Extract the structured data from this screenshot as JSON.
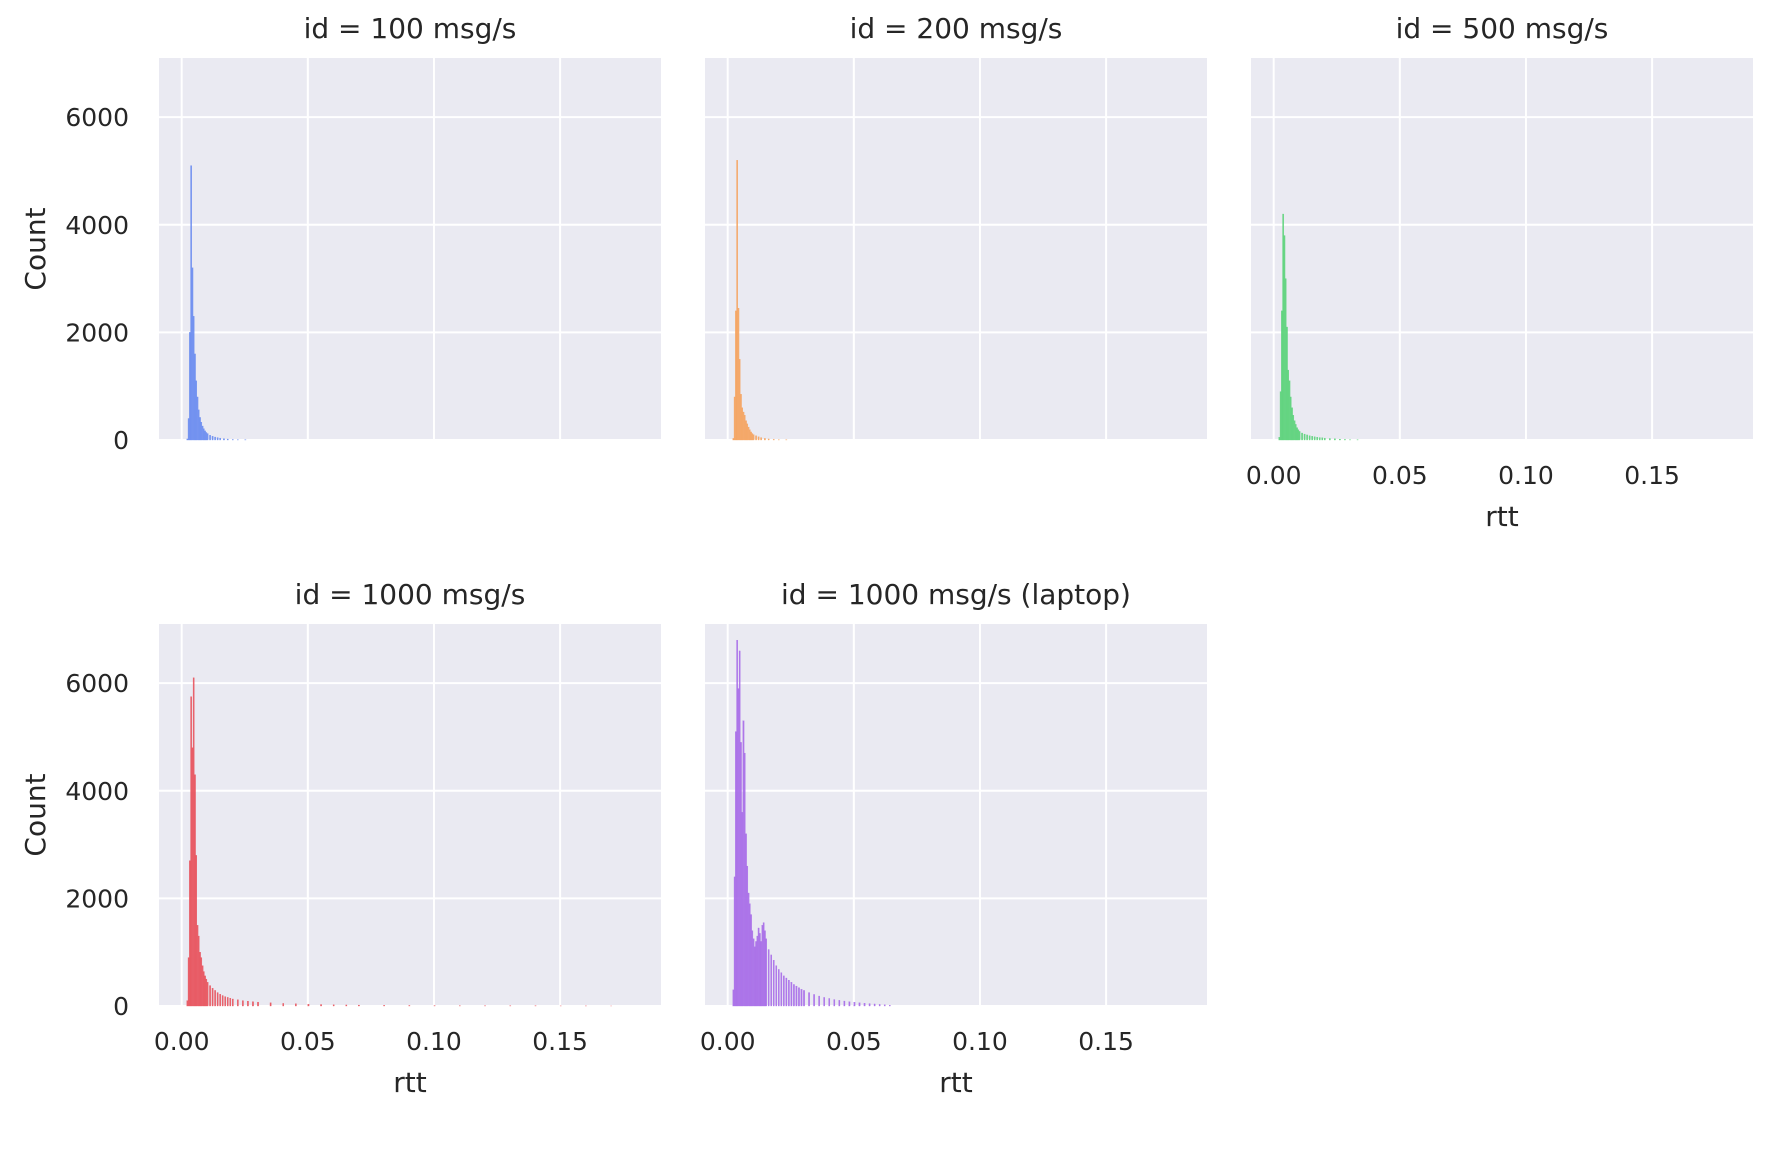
{
  "chart_data": {
    "type": "bar",
    "layout": "facet-grid",
    "style": "seaborn-darkgrid",
    "xlabel": "rtt",
    "ylabel": "Count",
    "xlim": [
      -0.009,
      0.19
    ],
    "ylim": [
      0,
      7100
    ],
    "xticks": [
      0.0,
      0.05,
      0.1,
      0.15
    ],
    "xtick_labels": [
      "0.00",
      "0.05",
      "0.10",
      "0.15"
    ],
    "yticks": [
      0,
      2000,
      4000,
      6000
    ],
    "ytick_labels": [
      "0",
      "2000",
      "4000",
      "6000"
    ],
    "grid": true,
    "bin_width": 0.0005,
    "panels": [
      {
        "title": "id = 100 msg/s",
        "color": "#6a8cf0",
        "show_xtick_labels": false,
        "show_xlabel": false,
        "show_ytick_labels": true,
        "show_ylabel": true,
        "bins": [
          [
            0.002,
            20
          ],
          [
            0.0025,
            400
          ],
          [
            0.003,
            2000
          ],
          [
            0.0035,
            5100
          ],
          [
            0.004,
            3200
          ],
          [
            0.0045,
            2300
          ],
          [
            0.005,
            1600
          ],
          [
            0.0055,
            1100
          ],
          [
            0.006,
            800
          ],
          [
            0.0065,
            560
          ],
          [
            0.007,
            420
          ],
          [
            0.0075,
            330
          ],
          [
            0.008,
            260
          ],
          [
            0.0085,
            210
          ],
          [
            0.009,
            170
          ],
          [
            0.0095,
            140
          ],
          [
            0.01,
            120
          ],
          [
            0.011,
            90
          ],
          [
            0.012,
            70
          ],
          [
            0.013,
            55
          ],
          [
            0.014,
            45
          ],
          [
            0.015,
            35
          ],
          [
            0.0165,
            25
          ],
          [
            0.018,
            18
          ],
          [
            0.02,
            10
          ],
          [
            0.022,
            6
          ],
          [
            0.025,
            3
          ]
        ]
      },
      {
        "title": "id = 200 msg/s",
        "color": "#f5a35f",
        "show_xtick_labels": false,
        "show_xlabel": false,
        "show_ytick_labels": false,
        "show_ylabel": false,
        "bins": [
          [
            0.002,
            30
          ],
          [
            0.0025,
            800
          ],
          [
            0.003,
            2400
          ],
          [
            0.0035,
            5200
          ],
          [
            0.004,
            2450
          ],
          [
            0.0045,
            1500
          ],
          [
            0.005,
            850
          ],
          [
            0.0055,
            600
          ],
          [
            0.006,
            520
          ],
          [
            0.0065,
            460
          ],
          [
            0.007,
            360
          ],
          [
            0.0075,
            300
          ],
          [
            0.008,
            240
          ],
          [
            0.0085,
            190
          ],
          [
            0.009,
            150
          ],
          [
            0.0095,
            120
          ],
          [
            0.01,
            100
          ],
          [
            0.011,
            80
          ],
          [
            0.012,
            60
          ],
          [
            0.013,
            45
          ],
          [
            0.0145,
            30
          ],
          [
            0.016,
            20
          ],
          [
            0.018,
            12
          ],
          [
            0.02,
            6
          ],
          [
            0.023,
            3
          ]
        ]
      },
      {
        "title": "id = 500 msg/s",
        "color": "#5bd37a",
        "show_xtick_labels": true,
        "show_xlabel": true,
        "show_ytick_labels": false,
        "show_ylabel": false,
        "bins": [
          [
            0.002,
            50
          ],
          [
            0.0025,
            900
          ],
          [
            0.003,
            2400
          ],
          [
            0.0035,
            4200
          ],
          [
            0.004,
            3800
          ],
          [
            0.0045,
            3000
          ],
          [
            0.005,
            2100
          ],
          [
            0.0055,
            1300
          ],
          [
            0.006,
            1100
          ],
          [
            0.0065,
            800
          ],
          [
            0.007,
            600
          ],
          [
            0.0075,
            460
          ],
          [
            0.008,
            360
          ],
          [
            0.0085,
            290
          ],
          [
            0.009,
            230
          ],
          [
            0.0095,
            190
          ],
          [
            0.01,
            160
          ],
          [
            0.011,
            130
          ],
          [
            0.012,
            110
          ],
          [
            0.013,
            95
          ],
          [
            0.014,
            80
          ],
          [
            0.015,
            70
          ],
          [
            0.016,
            60
          ],
          [
            0.017,
            52
          ],
          [
            0.018,
            45
          ],
          [
            0.019,
            40
          ],
          [
            0.02,
            35
          ],
          [
            0.022,
            28
          ],
          [
            0.024,
            22
          ],
          [
            0.026,
            16
          ],
          [
            0.028,
            10
          ],
          [
            0.03,
            6
          ],
          [
            0.033,
            3
          ]
        ]
      },
      {
        "title": "id = 1000 msg/s",
        "color": "#e8525c",
        "show_xtick_labels": true,
        "show_xlabel": true,
        "show_ytick_labels": true,
        "show_ylabel": true,
        "bins": [
          [
            0.002,
            100
          ],
          [
            0.0025,
            900
          ],
          [
            0.003,
            2700
          ],
          [
            0.0035,
            5750
          ],
          [
            0.004,
            4800
          ],
          [
            0.0045,
            6100
          ],
          [
            0.005,
            4300
          ],
          [
            0.0055,
            2800
          ],
          [
            0.006,
            1500
          ],
          [
            0.0065,
            1300
          ],
          [
            0.007,
            1000
          ],
          [
            0.0075,
            900
          ],
          [
            0.008,
            750
          ],
          [
            0.0085,
            640
          ],
          [
            0.009,
            560
          ],
          [
            0.0095,
            500
          ],
          [
            0.01,
            440
          ],
          [
            0.011,
            380
          ],
          [
            0.012,
            330
          ],
          [
            0.013,
            290
          ],
          [
            0.014,
            250
          ],
          [
            0.015,
            220
          ],
          [
            0.016,
            195
          ],
          [
            0.017,
            175
          ],
          [
            0.018,
            160
          ],
          [
            0.019,
            145
          ],
          [
            0.02,
            130
          ],
          [
            0.022,
            115
          ],
          [
            0.024,
            100
          ],
          [
            0.026,
            90
          ],
          [
            0.028,
            80
          ],
          [
            0.03,
            72
          ],
          [
            0.035,
            60
          ],
          [
            0.04,
            48
          ],
          [
            0.045,
            40
          ],
          [
            0.05,
            33
          ],
          [
            0.055,
            28
          ],
          [
            0.06,
            24
          ],
          [
            0.065,
            20
          ],
          [
            0.07,
            17
          ],
          [
            0.08,
            13
          ],
          [
            0.09,
            10
          ],
          [
            0.1,
            8
          ],
          [
            0.11,
            6
          ],
          [
            0.12,
            5
          ],
          [
            0.13,
            4
          ],
          [
            0.14,
            3
          ],
          [
            0.15,
            2
          ],
          [
            0.16,
            2
          ],
          [
            0.17,
            1
          ]
        ]
      },
      {
        "title": "id = 1000 msg/s (laptop)",
        "color": "#a76ce8",
        "show_xtick_labels": true,
        "show_xlabel": true,
        "show_ytick_labels": false,
        "show_ylabel": false,
        "bins": [
          [
            0.002,
            300
          ],
          [
            0.0025,
            2400
          ],
          [
            0.003,
            5100
          ],
          [
            0.0035,
            6800
          ],
          [
            0.004,
            5900
          ],
          [
            0.0045,
            6600
          ],
          [
            0.005,
            4900
          ],
          [
            0.0055,
            3600
          ],
          [
            0.006,
            5300
          ],
          [
            0.0065,
            4700
          ],
          [
            0.007,
            3200
          ],
          [
            0.0075,
            2600
          ],
          [
            0.008,
            2100
          ],
          [
            0.0085,
            1900
          ],
          [
            0.009,
            1700
          ],
          [
            0.0095,
            1400
          ],
          [
            0.01,
            1250
          ],
          [
            0.0105,
            1100
          ],
          [
            0.011,
            1200
          ],
          [
            0.0115,
            1300
          ],
          [
            0.012,
            1450
          ],
          [
            0.0125,
            1350
          ],
          [
            0.013,
            1200
          ],
          [
            0.0135,
            1500
          ],
          [
            0.014,
            1550
          ],
          [
            0.0145,
            1400
          ],
          [
            0.015,
            1250
          ],
          [
            0.016,
            1050
          ],
          [
            0.017,
            950
          ],
          [
            0.018,
            850
          ],
          [
            0.019,
            750
          ],
          [
            0.02,
            680
          ],
          [
            0.021,
            620
          ],
          [
            0.022,
            560
          ],
          [
            0.023,
            520
          ],
          [
            0.024,
            480
          ],
          [
            0.025,
            440
          ],
          [
            0.026,
            400
          ],
          [
            0.027,
            370
          ],
          [
            0.028,
            340
          ],
          [
            0.029,
            310
          ],
          [
            0.03,
            290
          ],
          [
            0.032,
            250
          ],
          [
            0.034,
            215
          ],
          [
            0.036,
            185
          ],
          [
            0.038,
            160
          ],
          [
            0.04,
            140
          ],
          [
            0.042,
            120
          ],
          [
            0.044,
            105
          ],
          [
            0.046,
            92
          ],
          [
            0.048,
            80
          ],
          [
            0.05,
            70
          ],
          [
            0.052,
            60
          ],
          [
            0.054,
            52
          ],
          [
            0.056,
            45
          ],
          [
            0.058,
            38
          ],
          [
            0.06,
            30
          ],
          [
            0.062,
            22
          ],
          [
            0.064,
            14
          ]
        ]
      }
    ]
  }
}
